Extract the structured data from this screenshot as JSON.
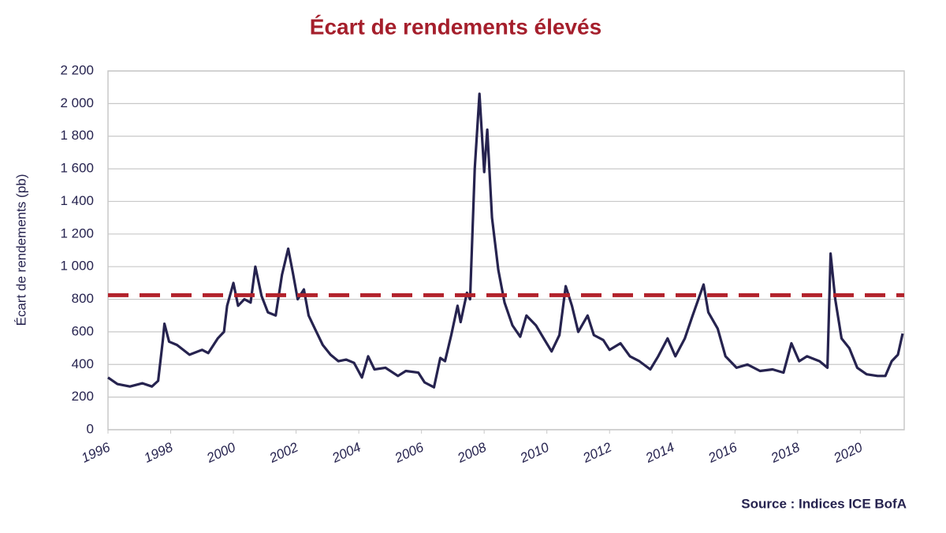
{
  "chart_data": {
    "type": "line",
    "title": "Écart de rendements élevés",
    "y_label": "Écart de rendements (pb)",
    "source": "Source : Indices ICE BofA",
    "color": "#26234f",
    "grid": true,
    "hline": {
      "value": 825,
      "color": "#b2222b"
    },
    "xlim": [
      1996,
      2021.4
    ],
    "xticks": [
      1996,
      1998,
      2000,
      2002,
      2004,
      2006,
      2008,
      2010,
      2012,
      2014,
      2016,
      2018,
      2020
    ],
    "ylim": [
      0,
      2200
    ],
    "yticks": [
      0,
      200,
      400,
      600,
      800,
      {
        "value": 1000,
        "label": "1 000"
      },
      {
        "value": 1200,
        "label": "1 200"
      },
      {
        "value": 1400,
        "label": "1 400"
      },
      {
        "value": 1600,
        "label": "1 600"
      },
      {
        "value": 1800,
        "label": "1 800"
      },
      {
        "value": 2000,
        "label": "2 000"
      },
      {
        "value": 2200,
        "label": "2 200"
      }
    ],
    "x": [
      1996.0,
      1996.3,
      1996.7,
      1997.1,
      1997.4,
      1997.6,
      1997.75,
      1997.8,
      1997.95,
      1998.2,
      1998.6,
      1999.0,
      1999.2,
      1999.5,
      1999.7,
      1999.8,
      2000.0,
      2000.15,
      2000.35,
      2000.55,
      2000.7,
      2000.9,
      2001.1,
      2001.35,
      2001.55,
      2001.75,
      2001.9,
      2002.05,
      2002.25,
      2002.4,
      2002.6,
      2002.85,
      2003.1,
      2003.35,
      2003.6,
      2003.85,
      2004.1,
      2004.3,
      2004.5,
      2004.85,
      2005.25,
      2005.5,
      2005.9,
      2006.1,
      2006.4,
      2006.6,
      2006.75,
      2006.95,
      2007.15,
      2007.25,
      2007.45,
      2007.55,
      2007.7,
      2007.85,
      2008.0,
      2008.1,
      2008.25,
      2008.45,
      2008.65,
      2008.9,
      2009.15,
      2009.35,
      2009.65,
      2009.9,
      2010.15,
      2010.4,
      2010.6,
      2010.8,
      2011.0,
      2011.3,
      2011.5,
      2011.8,
      2012.0,
      2012.35,
      2012.65,
      2012.95,
      2013.3,
      2013.55,
      2013.85,
      2014.1,
      2014.4,
      2014.65,
      2015.0,
      2015.15,
      2015.45,
      2015.7,
      2016.05,
      2016.4,
      2016.8,
      2017.2,
      2017.55,
      2017.8,
      2018.05,
      2018.3,
      2018.7,
      2018.95,
      2019.05,
      2019.2,
      2019.4,
      2019.65,
      2019.9,
      2020.2,
      2020.55,
      2020.8,
      2021.0,
      2021.2,
      2021.35
    ],
    "values": [
      320,
      280,
      265,
      285,
      265,
      300,
      550,
      650,
      540,
      520,
      460,
      490,
      470,
      560,
      600,
      760,
      900,
      760,
      800,
      780,
      1000,
      820,
      720,
      700,
      950,
      1110,
      960,
      800,
      860,
      700,
      620,
      520,
      460,
      420,
      430,
      410,
      320,
      450,
      370,
      380,
      330,
      360,
      350,
      290,
      260,
      440,
      420,
      580,
      760,
      660,
      840,
      800,
      1600,
      2060,
      1580,
      1840,
      1300,
      980,
      780,
      640,
      570,
      700,
      640,
      560,
      480,
      580,
      880,
      760,
      600,
      700,
      580,
      550,
      490,
      530,
      450,
      420,
      370,
      450,
      560,
      450,
      560,
      700,
      890,
      720,
      620,
      450,
      380,
      400,
      360,
      370,
      350,
      530,
      420,
      450,
      420,
      380,
      1080,
      800,
      560,
      500,
      380,
      340,
      330,
      330,
      420,
      460,
      590
    ]
  }
}
